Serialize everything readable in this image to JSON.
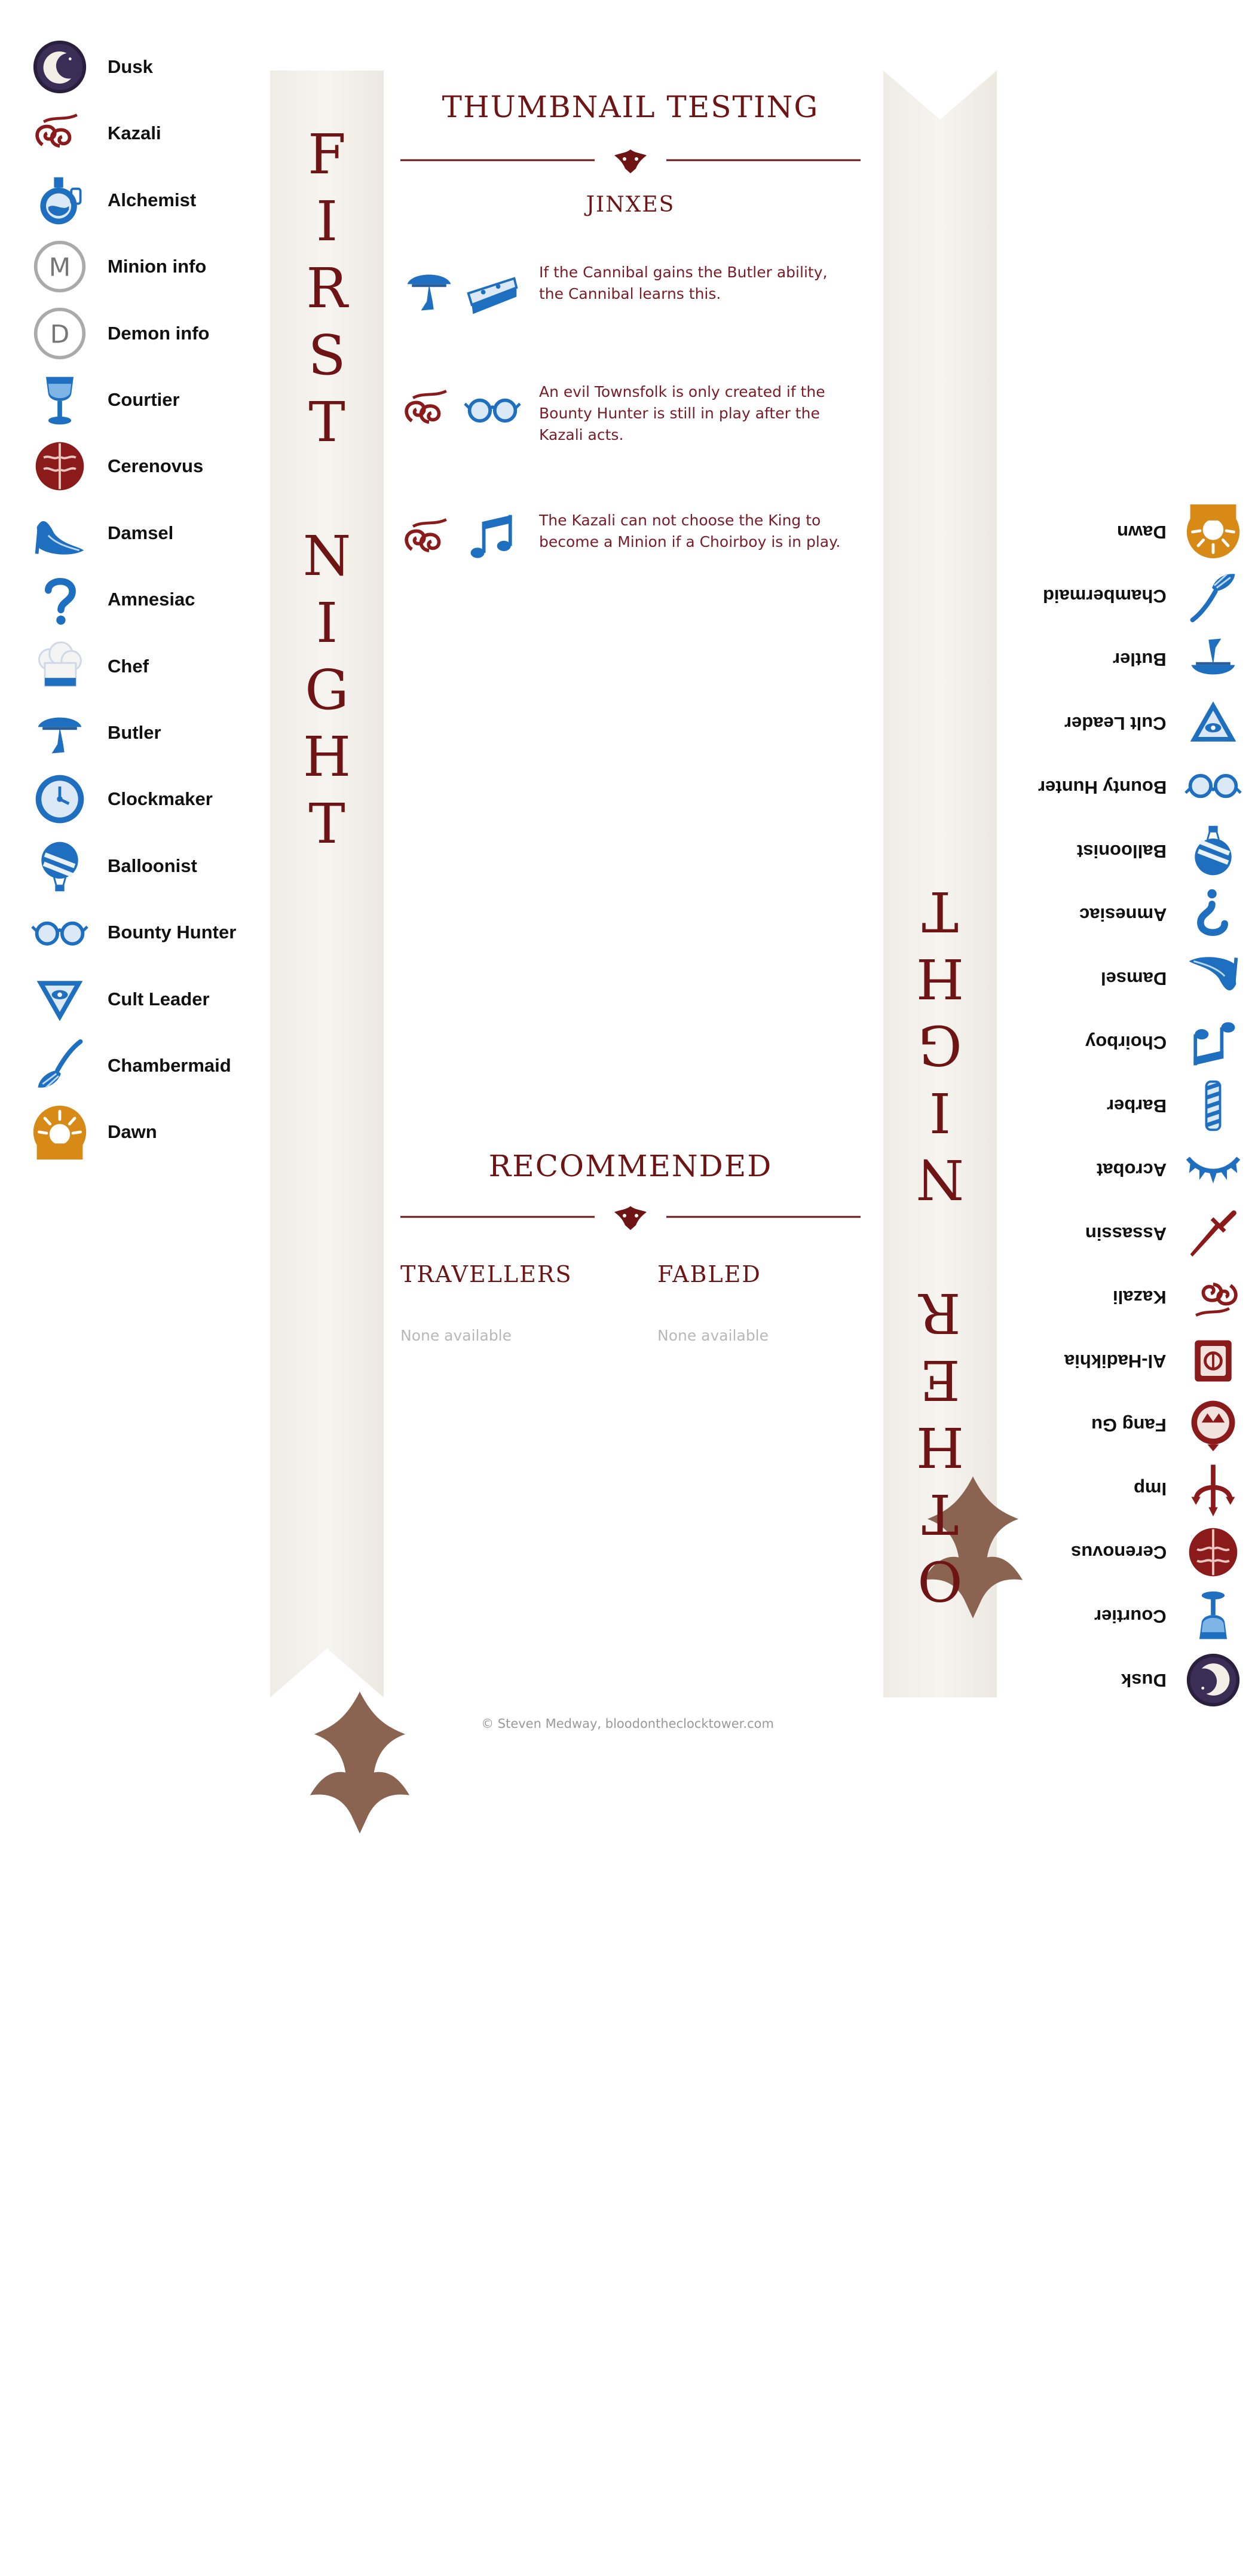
{
  "script_title": "THUMBNAIL TESTING",
  "jinxes_heading": "JINXES",
  "recommended_heading": "RECOMMENDED",
  "travellers_heading": "TRAVELLERS",
  "fabled_heading": "FABLED",
  "travellers_empty": "None available",
  "fabled_empty": "None available",
  "first_night_letters": [
    "F",
    "I",
    "R",
    "S",
    "T",
    "N",
    "I",
    "G",
    "H",
    "T"
  ],
  "other_night_letters": [
    "O",
    "T",
    "H",
    "E",
    "R",
    "N",
    "I",
    "G",
    "H",
    "T"
  ],
  "footer": "© Steven Medway, bloodontheclocktower.com",
  "colors": {
    "evil": "#8b1a1a",
    "good": "#1e6fc0",
    "banner_text": "#6e1414",
    "dawn": "#d88a16"
  },
  "first_night": [
    {
      "label": "Dusk",
      "icon": "moon-icon"
    },
    {
      "label": "Kazali",
      "icon": "kazali-icon"
    },
    {
      "label": "Alchemist",
      "icon": "potion-icon"
    },
    {
      "label": "Minion info",
      "icon": "minion-info-icon"
    },
    {
      "label": "Demon info",
      "icon": "demon-info-icon"
    },
    {
      "label": "Courtier",
      "icon": "goblet-icon"
    },
    {
      "label": "Cerenovus",
      "icon": "brain-icon"
    },
    {
      "label": "Damsel",
      "icon": "slipper-icon"
    },
    {
      "label": "Amnesiac",
      "icon": "question-mark-icon"
    },
    {
      "label": "Chef",
      "icon": "chef-hat-icon"
    },
    {
      "label": "Butler",
      "icon": "butler-icon"
    },
    {
      "label": "Clockmaker",
      "icon": "clock-icon"
    },
    {
      "label": "Balloonist",
      "icon": "balloon-icon"
    },
    {
      "label": "Bounty Hunter",
      "icon": "spectacles-icon"
    },
    {
      "label": "Cult Leader",
      "icon": "triangle-eye-icon"
    },
    {
      "label": "Chambermaid",
      "icon": "feather-duster-icon"
    },
    {
      "label": "Dawn",
      "icon": "sun-icon"
    }
  ],
  "other_night": [
    {
      "label": "Dusk",
      "icon": "moon-icon"
    },
    {
      "label": "Courtier",
      "icon": "goblet-icon"
    },
    {
      "label": "Cerenovus",
      "icon": "brain-icon"
    },
    {
      "label": "Imp",
      "icon": "trident-icon"
    },
    {
      "label": "Fang Gu",
      "icon": "fang-gu-icon"
    },
    {
      "label": "Al-Hadikhia",
      "icon": "al-hadikhia-icon"
    },
    {
      "label": "Kazali",
      "icon": "kazali-icon"
    },
    {
      "label": "Assassin",
      "icon": "dagger-icon"
    },
    {
      "label": "Acrobat",
      "icon": "crown-icon"
    },
    {
      "label": "Barber",
      "icon": "barber-pole-icon"
    },
    {
      "label": "Choirboy",
      "icon": "music-notes-icon"
    },
    {
      "label": "Damsel",
      "icon": "slipper-icon"
    },
    {
      "label": "Amnesiac",
      "icon": "question-mark-icon"
    },
    {
      "label": "Balloonist",
      "icon": "balloon-icon"
    },
    {
      "label": "Bounty Hunter",
      "icon": "spectacles-icon"
    },
    {
      "label": "Cult Leader",
      "icon": "triangle-eye-icon"
    },
    {
      "label": "Butler",
      "icon": "butler-icon"
    },
    {
      "label": "Chambermaid",
      "icon": "feather-duster-icon"
    },
    {
      "label": "Dawn",
      "icon": "sun-icon"
    }
  ],
  "jinxes": [
    {
      "icons": [
        "butler-icon",
        "cake-icon"
      ],
      "text": "If the Cannibal gains the Butler ability, the Cannibal learns this."
    },
    {
      "icons": [
        "kazali-icon",
        "spectacles-icon"
      ],
      "text": "An evil Townsfolk is only created if the Bounty Hunter is still in play after the Kazali acts."
    },
    {
      "icons": [
        "kazali-icon",
        "music-notes-icon"
      ],
      "text": "The Kazali can not choose the King to become a Minion if a Choirboy is in play."
    }
  ]
}
